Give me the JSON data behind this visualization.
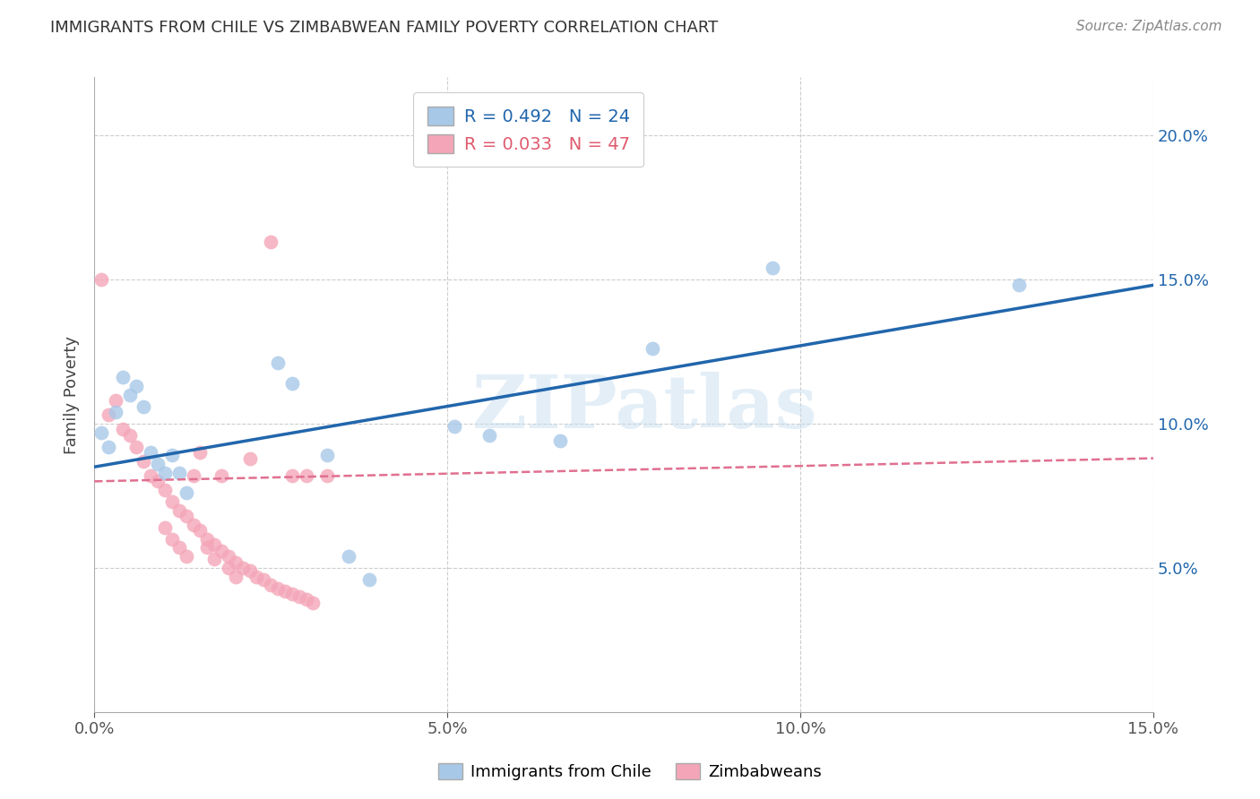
{
  "title": "IMMIGRANTS FROM CHILE VS ZIMBABWEAN FAMILY POVERTY CORRELATION CHART",
  "source": "Source: ZipAtlas.com",
  "xlim": [
    0.0,
    0.15
  ],
  "ylim": [
    0.0,
    0.22
  ],
  "ylabel": "Family Poverty",
  "legend_entries": [
    "Immigrants from Chile",
    "Zimbabweans"
  ],
  "legend_r_n": [
    {
      "r": "0.492",
      "n": "24"
    },
    {
      "r": "0.033",
      "n": "47"
    }
  ],
  "chile_color": "#a8c8e8",
  "zimbabwe_color": "#f4a6b8",
  "chile_line_color": "#2166ac",
  "zimbabwe_line_color": "#e07090",
  "watermark_text": "ZIPatlas",
  "chile_points": [
    [
      0.001,
      0.097
    ],
    [
      0.002,
      0.092
    ],
    [
      0.003,
      0.104
    ],
    [
      0.004,
      0.116
    ],
    [
      0.005,
      0.11
    ],
    [
      0.006,
      0.113
    ],
    [
      0.007,
      0.106
    ],
    [
      0.008,
      0.09
    ],
    [
      0.009,
      0.086
    ],
    [
      0.01,
      0.083
    ],
    [
      0.011,
      0.089
    ],
    [
      0.012,
      0.083
    ],
    [
      0.013,
      0.076
    ],
    [
      0.026,
      0.121
    ],
    [
      0.028,
      0.114
    ],
    [
      0.033,
      0.089
    ],
    [
      0.036,
      0.054
    ],
    [
      0.039,
      0.046
    ],
    [
      0.051,
      0.099
    ],
    [
      0.056,
      0.096
    ],
    [
      0.066,
      0.094
    ],
    [
      0.079,
      0.126
    ],
    [
      0.096,
      0.154
    ],
    [
      0.131,
      0.148
    ]
  ],
  "zimbabwe_points": [
    [
      0.001,
      0.15
    ],
    [
      0.002,
      0.103
    ],
    [
      0.003,
      0.108
    ],
    [
      0.004,
      0.098
    ],
    [
      0.005,
      0.096
    ],
    [
      0.006,
      0.092
    ],
    [
      0.007,
      0.087
    ],
    [
      0.008,
      0.082
    ],
    [
      0.009,
      0.08
    ],
    [
      0.01,
      0.077
    ],
    [
      0.011,
      0.073
    ],
    [
      0.012,
      0.07
    ],
    [
      0.013,
      0.068
    ],
    [
      0.014,
      0.065
    ],
    [
      0.015,
      0.063
    ],
    [
      0.016,
      0.06
    ],
    [
      0.017,
      0.058
    ],
    [
      0.018,
      0.056
    ],
    [
      0.019,
      0.054
    ],
    [
      0.02,
      0.052
    ],
    [
      0.021,
      0.05
    ],
    [
      0.022,
      0.049
    ],
    [
      0.023,
      0.047
    ],
    [
      0.024,
      0.046
    ],
    [
      0.025,
      0.044
    ],
    [
      0.026,
      0.043
    ],
    [
      0.027,
      0.042
    ],
    [
      0.028,
      0.041
    ],
    [
      0.029,
      0.04
    ],
    [
      0.03,
      0.039
    ],
    [
      0.031,
      0.038
    ],
    [
      0.014,
      0.082
    ],
    [
      0.018,
      0.082
    ],
    [
      0.022,
      0.088
    ],
    [
      0.025,
      0.163
    ],
    [
      0.028,
      0.082
    ],
    [
      0.03,
      0.082
    ],
    [
      0.033,
      0.082
    ],
    [
      0.015,
      0.09
    ],
    [
      0.016,
      0.057
    ],
    [
      0.017,
      0.053
    ],
    [
      0.019,
      0.05
    ],
    [
      0.02,
      0.047
    ],
    [
      0.01,
      0.064
    ],
    [
      0.011,
      0.06
    ],
    [
      0.012,
      0.057
    ],
    [
      0.013,
      0.054
    ]
  ],
  "chile_line": [
    0.0,
    0.15
  ],
  "chile_line_y": [
    0.085,
    0.148
  ],
  "zimbabwe_line": [
    0.0,
    0.15
  ],
  "zimbabwe_line_y": [
    0.08,
    0.088
  ]
}
